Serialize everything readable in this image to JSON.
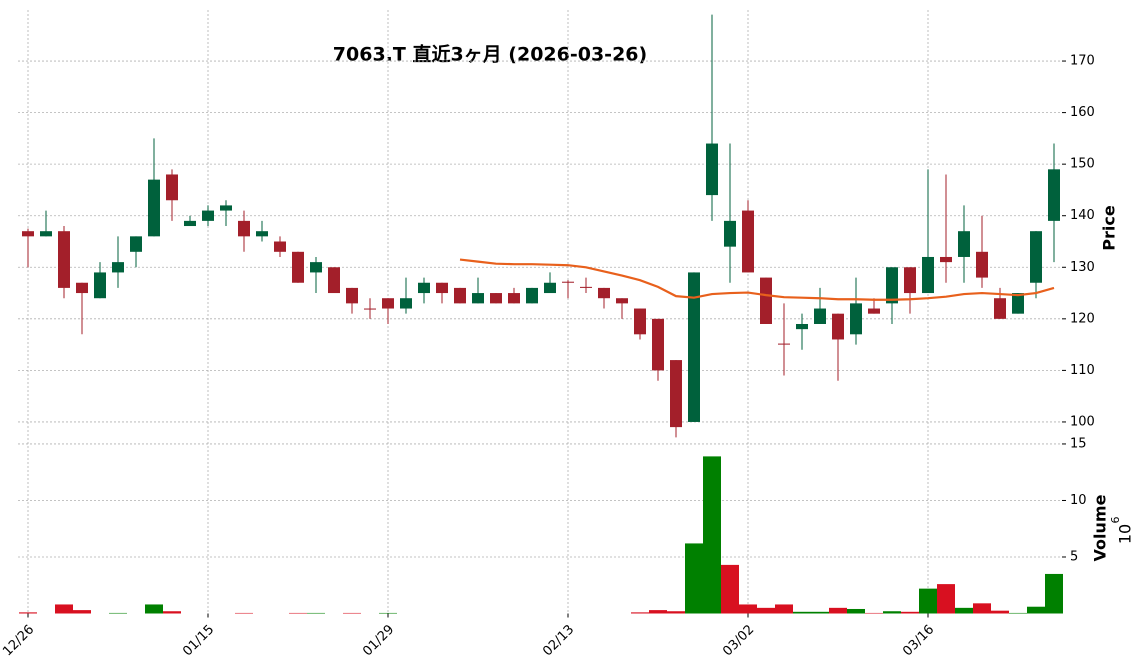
{
  "chart_data": {
    "type": "candlestick",
    "title": "7063.T  直近3ヶ月  (2026-03-26)",
    "y_label": "Price",
    "volume_label": "Volume",
    "volume_scale_base": "10",
    "volume_scale_exponent": "6",
    "categories": [
      "12/26",
      null,
      null,
      null,
      null,
      null,
      null,
      null,
      null,
      null,
      "01/15",
      null,
      null,
      null,
      null,
      null,
      null,
      null,
      null,
      null,
      "01/29",
      null,
      null,
      null,
      null,
      null,
      null,
      null,
      null,
      null,
      "02/13",
      null,
      null,
      null,
      null,
      null,
      null,
      null,
      null,
      null,
      "03/02",
      null,
      null,
      null,
      null,
      null,
      null,
      null,
      null,
      null,
      "03/16",
      null,
      null,
      null,
      null,
      null,
      null,
      null
    ],
    "open": [
      137,
      136,
      137,
      127,
      124,
      129,
      133,
      136,
      148,
      138,
      139,
      141,
      139,
      136,
      135,
      133,
      129,
      130,
      126,
      122,
      124,
      122,
      125,
      127,
      126,
      123,
      125,
      125,
      123,
      125,
      127.2,
      126.2,
      126,
      124,
      122,
      120,
      112,
      100,
      144,
      134,
      141,
      128,
      115.2,
      118,
      119,
      121,
      117,
      122,
      123,
      130,
      125,
      132,
      132,
      133,
      124,
      121,
      127,
      139
    ],
    "high": [
      137.5,
      141,
      138,
      127,
      131,
      136,
      136,
      155,
      149,
      140,
      142,
      143,
      141,
      139,
      136,
      133,
      132,
      130,
      126,
      124,
      124,
      128,
      128,
      127,
      126,
      128,
      125,
      126,
      126,
      129,
      127.5,
      128,
      126,
      124,
      122,
      120,
      112,
      129,
      179,
      154,
      143,
      128,
      123,
      121,
      126,
      121,
      128,
      124,
      130,
      130,
      149,
      148,
      142,
      140,
      126,
      125,
      137,
      154
    ],
    "low": [
      130,
      136,
      124,
      117,
      124,
      126,
      130,
      136,
      139,
      138,
      138,
      138,
      133,
      135,
      132,
      127,
      125,
      125,
      121,
      120,
      119,
      121,
      123,
      123,
      123,
      123,
      123,
      123,
      123,
      125,
      124,
      125,
      122,
      120,
      116,
      108,
      97,
      100,
      139,
      127,
      129,
      119,
      109,
      114,
      119,
      108,
      115,
      121,
      119,
      121,
      125,
      127,
      127,
      126,
      120,
      121,
      124,
      131
    ],
    "close": [
      136,
      137,
      126,
      125,
      129,
      131,
      136,
      147,
      143,
      139,
      141,
      142,
      136,
      137,
      133,
      127,
      131,
      125,
      123,
      121.8,
      122,
      124,
      127,
      125,
      123,
      125,
      123,
      123,
      126,
      127,
      127,
      126,
      124,
      123,
      117,
      110,
      99,
      129,
      154,
      139,
      129,
      119,
      115,
      119,
      122,
      116,
      123,
      121,
      130,
      125,
      132,
      131,
      137,
      128,
      120,
      125,
      137,
      149
    ],
    "volume": [
      0.1,
      0,
      0.8,
      0.3,
      0,
      0.05,
      0,
      0.8,
      0.2,
      0,
      0,
      0,
      0.05,
      0,
      0,
      0.05,
      0.05,
      0,
      0.05,
      0,
      0.05,
      0,
      0,
      0,
      0,
      0,
      0,
      0,
      0,
      0,
      0,
      0,
      0,
      0,
      0.1,
      0.3,
      0.2,
      6.2,
      13.9,
      4.3,
      0.8,
      0.5,
      0.8,
      0.15,
      0.15,
      0.5,
      0.4,
      0.05,
      0.2,
      0.15,
      2.2,
      2.6,
      0.5,
      0.9,
      0.25,
      0.05,
      0.6,
      3.5
    ],
    "ma": [
      null,
      null,
      null,
      null,
      null,
      null,
      null,
      null,
      null,
      null,
      null,
      null,
      null,
      null,
      null,
      null,
      null,
      null,
      null,
      null,
      null,
      null,
      null,
      null,
      131.5,
      131.1,
      130.7,
      130.6,
      130.6,
      130.5,
      130.4,
      130.0,
      129.2,
      128.4,
      127.5,
      126.2,
      124.4,
      124.1,
      124.8,
      125.0,
      125.1,
      124.6,
      124.2,
      124.1,
      124.0,
      123.8,
      123.8,
      123.7,
      123.7,
      123.8,
      124.0,
      124.3,
      124.8,
      125.0,
      124.8,
      124.6,
      125.0,
      126.0
    ],
    "up_color": "#00613c",
    "down_color": "#a31f2a",
    "volume_up_color": "#008000",
    "volume_down_color": "#d81020",
    "ma_color": "#e8601c",
    "ylim": [
      96.5,
      179.9
    ],
    "yticks": [
      100,
      110,
      120,
      130,
      140,
      150,
      160,
      170
    ],
    "volume_ylim": [
      0,
      15.35
    ],
    "volume_ticks": [
      5,
      10,
      15
    ],
    "grid": true
  }
}
